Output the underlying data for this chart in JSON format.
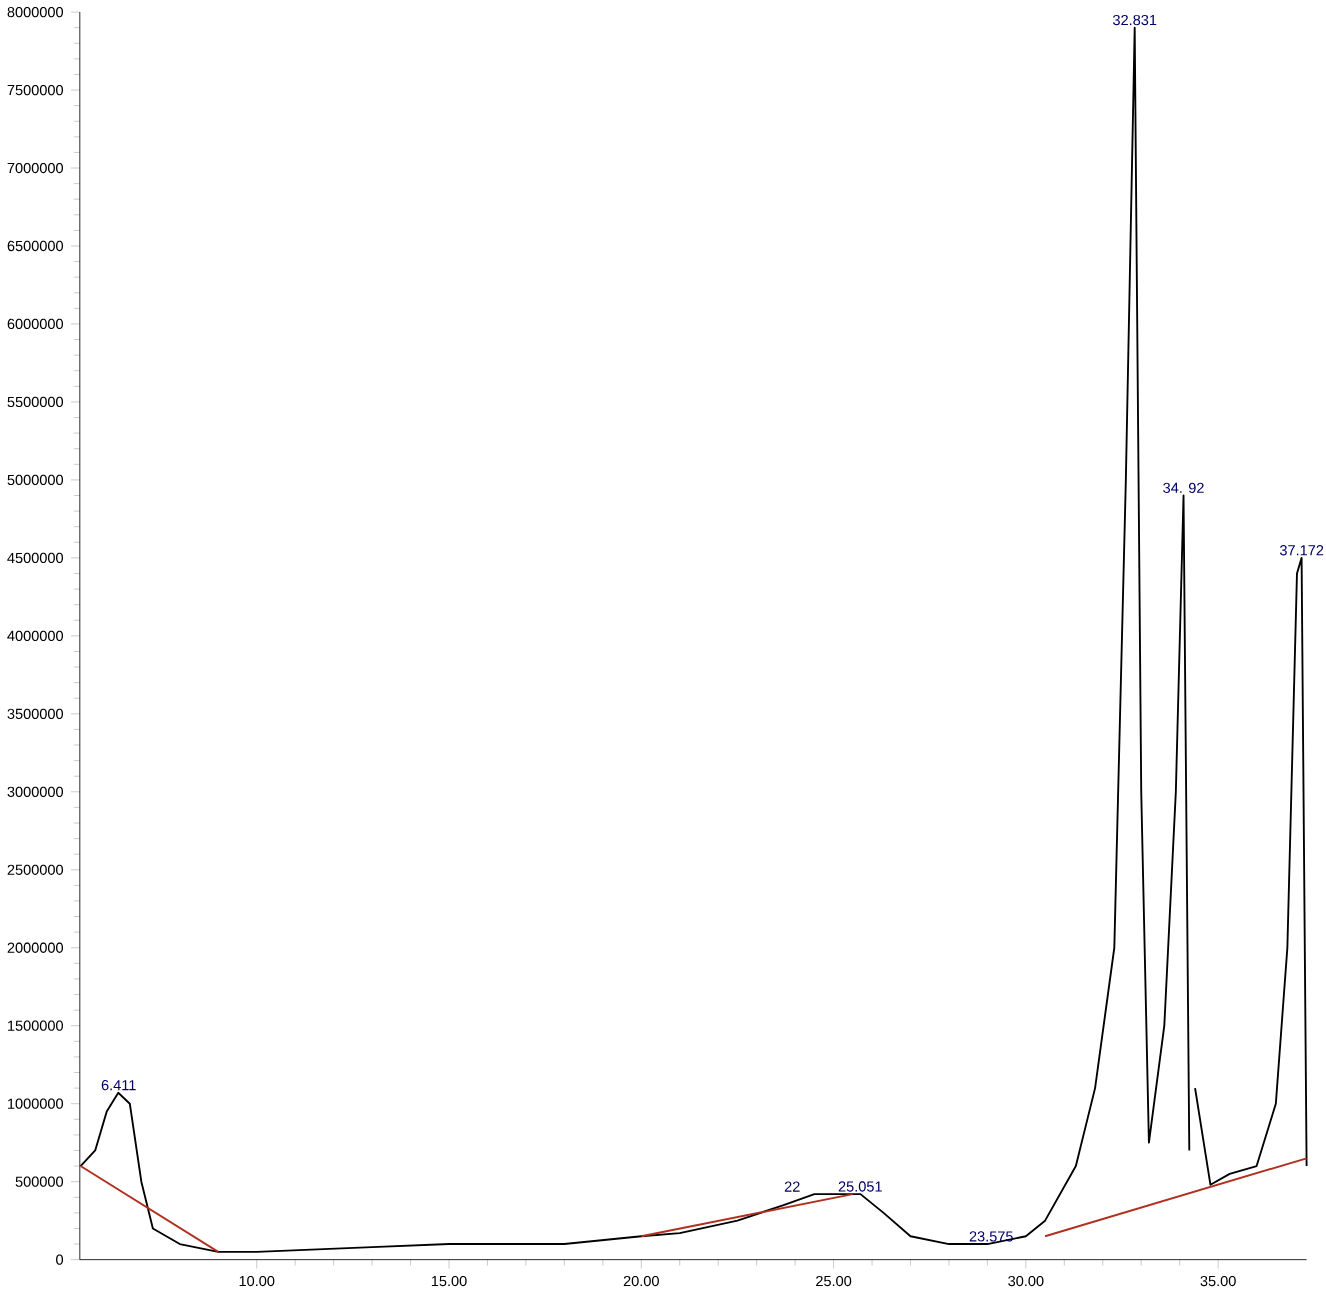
{
  "chart_data": {
    "type": "line",
    "xlim": [
      5.4,
      37.3
    ],
    "ylim": [
      0,
      8000000
    ],
    "xticks": [
      {
        "value": 10,
        "label": "10.00"
      },
      {
        "value": 15,
        "label": "15.00"
      },
      {
        "value": 20,
        "label": "20.00"
      },
      {
        "value": 25,
        "label": "25.00"
      },
      {
        "value": 30,
        "label": "30.00"
      },
      {
        "value": 35,
        "label": "35.00"
      }
    ],
    "yticks": [
      0,
      500000,
      1000000,
      1500000,
      2000000,
      2500000,
      3000000,
      3500000,
      4000000,
      4500000,
      5000000,
      5500000,
      6000000,
      6500000,
      7000000,
      7500000,
      8000000
    ],
    "grid": false,
    "marker": "none",
    "line_style": "solid",
    "series": [
      {
        "color": "#000000",
        "x": [
          5.42,
          5.8,
          6.1,
          6.4,
          6.7,
          7.0,
          7.3,
          8.0,
          9.0,
          10.0,
          13.0,
          15.0,
          18.0,
          20.0,
          21.0,
          22.5,
          23.7,
          24.5,
          25.7,
          26.3,
          27.0,
          28.0,
          29.0,
          30.0,
          30.5,
          31.3,
          31.8,
          32.3,
          32.6,
          32.83,
          33.0,
          33.2,
          33.6,
          33.9,
          34.1,
          34.25,
          34.35,
          34.4,
          34.8,
          35.3,
          36.0,
          36.5,
          36.8,
          37.05,
          37.17,
          37.3
        ],
        "values": [
          600000,
          700000,
          950000,
          1070000,
          1000000,
          500000,
          200000,
          100000,
          50000,
          50000,
          80000,
          100000,
          100000,
          150000,
          170000,
          250000,
          350000,
          420000,
          420000,
          300000,
          150000,
          100000,
          100000,
          150000,
          250000,
          600000,
          1100000,
          2000000,
          5000000,
          7900000,
          3000000,
          750000,
          1500000,
          3000000,
          4900000,
          700000,
          null,
          1100000,
          480000,
          550000,
          600000,
          1000000,
          2000000,
          4400000,
          4500000,
          600000
        ]
      },
      {
        "color": "#b03020",
        "x": [
          5.42,
          9.0
        ],
        "values": [
          600000,
          50000
        ]
      },
      {
        "color": "#b03020",
        "x": [
          20.0,
          25.5
        ],
        "values": [
          150000,
          420000
        ]
      },
      {
        "color": "#b03020",
        "x": [
          30.5,
          37.3
        ],
        "values": [
          150000,
          650000
        ]
      }
    ],
    "annotations": [
      {
        "text": "6.411",
        "x": 6.411,
        "y": 1070000
      },
      {
        "text": "22",
        "x": 24.2,
        "y": 420000
      },
      {
        "text": "25.051",
        "x": 25.051,
        "y": 420000
      },
      {
        "text": "23.575",
        "x": 29.1,
        "y": 100000
      },
      {
        "text": "32.831",
        "x": 32.831,
        "y": 7900000
      },
      {
        "text": "34. 92",
        "x": 34.1,
        "y": 4900000
      },
      {
        "text": "37.172",
        "x": 37.172,
        "y": 4500000
      }
    ]
  }
}
